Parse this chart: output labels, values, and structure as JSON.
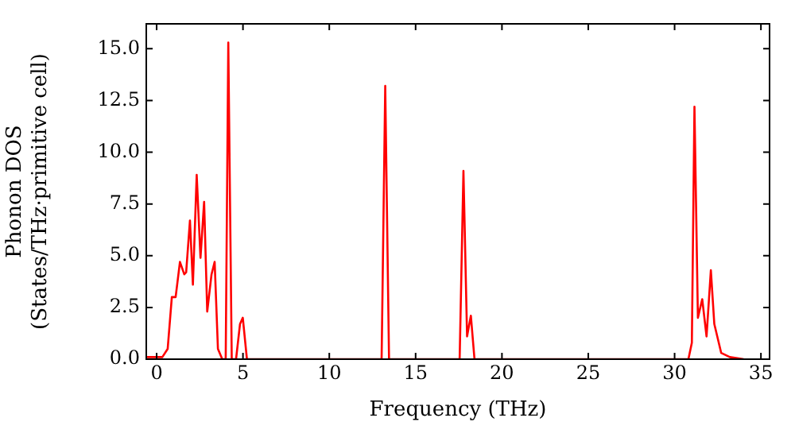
{
  "chart_data": {
    "type": "line",
    "xlabel": "Frequency (THz)",
    "ylabel": "Phonon DOS\n(States/THz·primitive cell)",
    "series": [
      {
        "color": "#ff0000",
        "x": [
          -0.6,
          0.33,
          0.64,
          0.88,
          1.1,
          1.35,
          1.6,
          1.71,
          1.93,
          2.1,
          2.32,
          2.54,
          2.75,
          2.93,
          3.18,
          3.36,
          3.55,
          3.8,
          4.0,
          4.15,
          4.35,
          4.6,
          4.83,
          4.99,
          5.23,
          13.03,
          13.24,
          13.46,
          17.55,
          17.77,
          17.98,
          18.2,
          18.41,
          30.8,
          31.0,
          31.15,
          31.35,
          31.6,
          31.85,
          32.1,
          32.3,
          32.7,
          33.2,
          34.0
        ],
        "values": [
          0.1,
          0.1,
          0.5,
          3.0,
          3.0,
          4.7,
          4.1,
          4.2,
          6.7,
          3.6,
          8.9,
          4.9,
          7.6,
          2.3,
          4.1,
          4.7,
          0.5,
          0,
          0,
          15.3,
          0,
          0,
          1.7,
          2.0,
          0,
          0,
          13.2,
          0,
          0,
          9.1,
          1.1,
          2.1,
          0,
          0,
          0.8,
          12.2,
          2.0,
          2.9,
          1.1,
          4.3,
          1.7,
          0.3,
          0.1,
          0
        ]
      }
    ],
    "xlim": [
      -0.6,
      35.5
    ],
    "xticks": [
      0,
      5,
      10,
      15,
      20,
      25,
      30,
      35
    ],
    "ylim": [
      0,
      16.2
    ],
    "yticks": [
      {
        "value": 0,
        "label": "0.0"
      },
      {
        "value": 2.5,
        "label": "2.5"
      },
      {
        "value": 5,
        "label": "5.0"
      },
      {
        "value": 7.5,
        "label": "7.5"
      },
      {
        "value": 10,
        "label": "10.0"
      },
      {
        "value": 12.5,
        "label": "12.5"
      },
      {
        "value": 15,
        "label": "15.0"
      }
    ],
    "grid": false,
    "legend": false,
    "marker": "none",
    "line_style": "solid"
  }
}
